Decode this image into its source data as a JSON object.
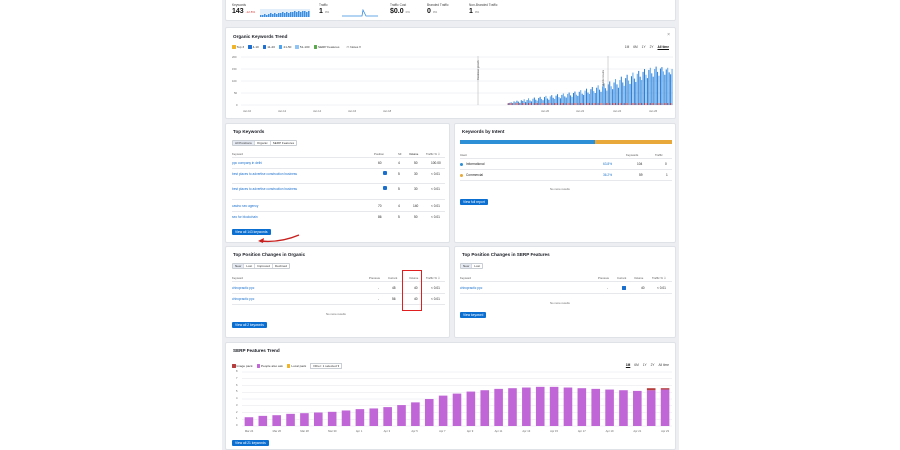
{
  "metrics": [
    {
      "label": "Keywords",
      "value": "143",
      "delta": "-12.8%"
    },
    {
      "label": "Traffic",
      "value": "1",
      "delta": "0%"
    },
    {
      "label": "Traffic Cost",
      "value": "$0.0",
      "delta": "0%"
    },
    {
      "label": "Branded Traffic",
      "value": "0",
      "delta": "0%"
    },
    {
      "label": "Non-Branded Traffic",
      "value": "1",
      "delta": "0%"
    }
  ],
  "trend": {
    "title": "Organic Keywords Trend",
    "legend": [
      "Top 3",
      "4-10",
      "11-20",
      "21-50",
      "51-100",
      "SERP Features"
    ],
    "notes_label": "Notes",
    "ranges": [
      "1M",
      "6M",
      "1Y",
      "2Y",
      "All time"
    ],
    "active_range": "All time",
    "y_ticks": [
      "200",
      "150",
      "100",
      "50",
      "0"
    ],
    "x_ticks": [
      "Jan 10",
      "Jan 12",
      "Jan 14",
      "Jan 16",
      "Jan 18",
      "Jan 20",
      "Jan 22",
      "Jan 24",
      "Jan 26"
    ],
    "annotations": [
      "Database growth",
      "Mobile results"
    ],
    "close_label": "×"
  },
  "top_keywords": {
    "title": "Top Keywords",
    "tabs": [
      "All Positions",
      "Organic",
      "SERP Features"
    ],
    "headers": [
      "Keyword",
      "Position",
      "SF",
      "Volume",
      "Traffic %"
    ],
    "rows": [
      {
        "keyword": "ppc company in delhi",
        "position": "60",
        "sf": "4",
        "volume": "50",
        "traffic": "100.00"
      },
      {
        "keyword": "best places to advertise construction business",
        "position": "",
        "sf": "5",
        "volume": "30",
        "traffic": "< 0.01"
      },
      {
        "keyword": "best places to advertise construction business",
        "position": "",
        "sf": "5",
        "volume": "30",
        "traffic": "< 0.01"
      },
      {
        "keyword": "casino seo agency",
        "position": "70",
        "sf": "4",
        "volume": "140",
        "traffic": "< 0.01"
      },
      {
        "keyword": "seo for blockchain",
        "position": "86",
        "sf": "5",
        "volume": "50",
        "traffic": "< 0.01"
      }
    ],
    "button": "View all 143 keywords"
  },
  "intent": {
    "title": "Keywords by Intent",
    "headers": [
      "Intent",
      "Keywords",
      "Traffic"
    ],
    "rows": [
      {
        "name": "Informational",
        "pct": "63.8%",
        "keywords": "104",
        "traffic": "0",
        "color": "#2d8fd5",
        "share": 0.638
      },
      {
        "name": "Commercial",
        "pct": "36.2%",
        "keywords": "59",
        "traffic": "1",
        "color": "#e8a93a",
        "share": 0.362
      }
    ],
    "no_more": "No more results",
    "button": "View full report"
  },
  "organic_changes": {
    "title": "Top Position Changes in Organic",
    "tabs": [
      "New",
      "Lost",
      "Improved",
      "Declined"
    ],
    "headers": [
      "Keyword",
      "Previous",
      "Current",
      "Volume",
      "Traffic %"
    ],
    "rows": [
      {
        "keyword": "chiropractic ppc",
        "previous": "-",
        "current": "45",
        "volume": "40",
        "traffic": "< 0.01"
      },
      {
        "keyword": "chiropractic ppc",
        "previous": "-",
        "current": "56",
        "volume": "40",
        "traffic": "< 0.01"
      }
    ],
    "no_more": "No more results",
    "button": "View all 2 keywords"
  },
  "serp_changes": {
    "title": "Top Position Changes in SERP Features",
    "tabs": [
      "New",
      "Lost"
    ],
    "headers": [
      "Keyword",
      "Previous",
      "Current",
      "Volume",
      "Traffic %"
    ],
    "rows": [
      {
        "keyword": "chiropractic ppc",
        "previous": "-",
        "current": "",
        "volume": "40",
        "traffic": "< 0.01"
      }
    ],
    "no_more": "No more results",
    "button": "View keyword"
  },
  "serp_trend": {
    "title": "SERP Features Trend",
    "legend": [
      "Image pack",
      "People also ask",
      "Local pack"
    ],
    "other_label": "Other: 1 selected",
    "ranges": [
      "1M",
      "6M",
      "1Y",
      "2Y",
      "All time"
    ],
    "active_range": "1M",
    "y_ticks": [
      "8",
      "7",
      "6",
      "5",
      "4",
      "3",
      "2",
      "1",
      "0"
    ],
    "x_ticks": [
      "Mar 24",
      "Mar 26",
      "Mar 28",
      "Mar 30",
      "Apr 1",
      "Apr 3",
      "Apr 5",
      "Apr 7",
      "Apr 9",
      "Apr 11",
      "Apr 13",
      "Apr 15",
      "Apr 17",
      "Apr 19",
      "Apr 21",
      "Apr 23"
    ],
    "button": "View all 21 keywords"
  },
  "chart_data": [
    {
      "type": "bar",
      "title": "Organic Keywords Trend",
      "ylim": [
        0,
        200
      ],
      "x_labels": [
        "Jan 10",
        "Jan 12",
        "Jan 14",
        "Jan 16",
        "Jan 18",
        "Jan 20",
        "Jan 22",
        "Jan 24",
        "Jan 26"
      ],
      "x_range": [
        "Jan 10",
        "Jan 26"
      ],
      "series": [
        {
          "name": "4-10 / 11-100",
          "values": [
            0,
            0,
            0,
            0,
            0,
            0,
            0,
            0,
            0,
            0,
            0,
            0,
            0,
            0,
            0,
            0,
            0,
            0,
            0,
            0,
            0,
            0,
            0,
            0,
            0,
            0,
            0,
            0,
            0,
            0,
            0,
            0,
            0,
            0,
            0,
            0,
            0,
            0,
            0,
            0,
            0,
            0,
            0,
            0,
            0,
            0,
            0,
            0,
            0,
            0,
            0,
            0,
            0,
            0,
            0,
            0,
            0,
            0,
            0,
            0,
            0,
            0,
            0,
            0,
            0,
            0,
            0,
            0,
            0,
            0,
            0,
            0,
            0,
            0,
            0,
            0,
            0,
            0,
            0,
            0,
            0,
            0,
            0,
            0,
            0,
            0,
            0,
            0,
            0,
            0,
            0,
            0,
            0,
            0,
            0,
            0,
            0,
            0,
            0,
            0,
            0,
            0,
            0,
            0,
            0,
            0,
            0,
            0,
            0,
            0,
            0,
            0,
            0,
            0,
            0,
            0,
            0,
            0,
            0,
            0,
            0,
            0,
            0,
            0,
            0,
            0,
            0,
            0,
            0,
            0,
            0,
            0,
            0,
            0,
            0,
            0,
            0,
            0,
            0,
            0,
            0,
            0,
            0,
            0,
            0,
            0,
            0,
            0,
            0,
            0,
            0,
            0,
            0,
            0,
            0,
            0,
            0,
            0,
            0,
            0,
            0,
            0,
            0,
            0,
            0,
            0,
            0,
            0,
            0,
            0,
            0,
            0,
            0,
            0,
            0,
            0,
            0,
            0,
            0,
            0,
            0,
            0,
            0,
            0,
            5,
            9,
            12,
            8,
            15,
            11,
            18,
            14,
            9,
            20,
            17,
            24,
            13,
            21,
            28,
            19,
            15,
            26,
            31,
            22,
            18,
            29,
            34,
            25,
            20,
            33,
            38,
            27,
            22,
            36,
            41,
            30,
            25,
            39,
            45,
            33,
            28,
            42,
            48,
            36,
            31,
            46,
            52,
            40,
            34,
            50,
            56,
            43,
            38,
            55,
            62,
            47,
            42,
            60,
            68,
            52,
            46,
            66,
            75,
            58,
            50,
            72,
            82,
            64,
            55,
            78,
            90,
            70,
            60,
            86,
            98,
            78,
            66,
            94,
            108,
            86,
            72,
            104,
            118,
            94,
            80,
            112,
            126,
            102,
            88,
            120,
            135,
            110,
            96,
            130,
            142,
            118,
            104,
            138,
            150,
            126,
            112,
            146,
            155,
            132,
            118,
            150,
            160,
            138,
            122,
            152,
            158,
            140,
            126,
            148,
            155,
            136,
            128,
            150
          ]
        },
        {
          "name": "Top 3",
          "values": []
        }
      ]
    },
    {
      "type": "bar",
      "title": "SERP Features Trend",
      "ylim": [
        0,
        8
      ],
      "categories": [
        "Mar 24",
        "Mar 25",
        "Mar 26",
        "Mar 27",
        "Mar 28",
        "Mar 29",
        "Mar 30",
        "Mar 31",
        "Apr 1",
        "Apr 2",
        "Apr 3",
        "Apr 4",
        "Apr 5",
        "Apr 6",
        "Apr 7",
        "Apr 8",
        "Apr 9",
        "Apr 10",
        "Apr 11",
        "Apr 12",
        "Apr 13",
        "Apr 14",
        "Apr 15",
        "Apr 16",
        "Apr 17",
        "Apr 18",
        "Apr 19",
        "Apr 20",
        "Apr 21",
        "Apr 22",
        "Apr 23"
      ],
      "series": [
        {
          "name": "People also ask",
          "values": [
            1.3,
            1.5,
            1.6,
            1.8,
            1.9,
            2.0,
            2.1,
            2.3,
            2.5,
            2.6,
            2.8,
            3.1,
            3.5,
            4.0,
            4.5,
            4.8,
            5.1,
            5.3,
            5.5,
            5.6,
            5.7,
            5.8,
            5.8,
            5.7,
            5.6,
            5.5,
            5.4,
            5.3,
            5.2,
            5.3,
            5.4
          ]
        },
        {
          "name": "Image pack",
          "values": [
            0,
            0,
            0,
            0,
            0,
            0,
            0,
            0,
            0,
            0,
            0,
            0,
            0,
            0,
            0,
            0,
            0,
            0,
            0,
            0,
            0,
            0,
            0,
            0,
            0,
            0,
            0,
            0,
            0,
            0.3,
            0.2
          ]
        }
      ]
    }
  ]
}
